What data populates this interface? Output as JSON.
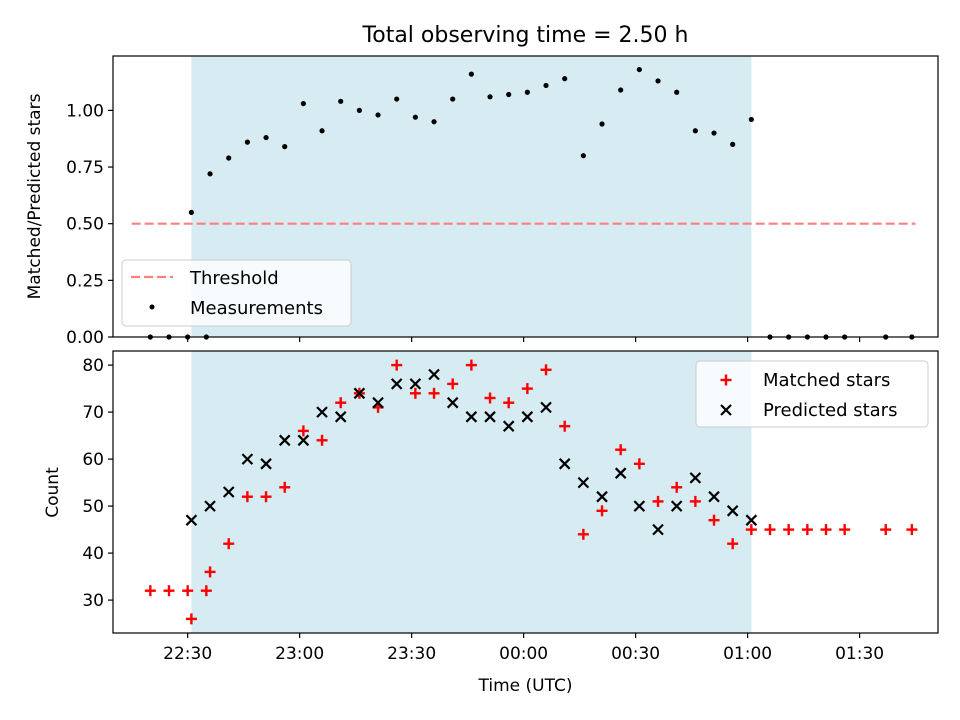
{
  "colors": {
    "shade": "#add8e6",
    "threshold": "#ff7f7f",
    "measurement": "#000000",
    "matched": "#ff0000",
    "predicted": "#000000"
  },
  "chart_data": [
    {
      "type": "scatter",
      "title": "Total observing time = 2.50 h",
      "xlabel": "",
      "ylabel": "Matched/Predicted stars",
      "xlim": [
        "22:10",
        "01:51"
      ],
      "ylim": [
        0,
        1.24
      ],
      "yticks": [
        "0.00",
        "0.25",
        "0.50",
        "0.75",
        "1.00"
      ],
      "shaded_region": {
        "x": [
          "22:31",
          "01:01"
        ]
      },
      "threshold": {
        "name": "Threshold",
        "x": [
          "22:15",
          "01:45"
        ],
        "y": 0.5
      },
      "legend": {
        "position": "lower-left",
        "entries": [
          "Threshold",
          "Measurements"
        ]
      },
      "series": [
        {
          "name": "Measurements",
          "marker": "dot",
          "x": [
            "22:20",
            "22:25",
            "22:30",
            "22:35",
            "22:31",
            "22:36",
            "22:41",
            "22:46",
            "22:51",
            "22:56",
            "23:01",
            "23:06",
            "23:11",
            "23:16",
            "23:21",
            "23:26",
            "23:31",
            "23:36",
            "23:41",
            "23:46",
            "23:51",
            "23:56",
            "00:01",
            "00:06",
            "00:11",
            "00:16",
            "00:21",
            "00:26",
            "00:31",
            "00:36",
            "00:41",
            "00:46",
            "00:51",
            "00:56",
            "01:01",
            "01:06",
            "01:11",
            "01:16",
            "01:21",
            "01:26",
            "01:37",
            "01:44"
          ],
          "y": [
            0,
            0,
            0,
            0,
            0.55,
            0.72,
            0.79,
            0.86,
            0.88,
            0.84,
            1.03,
            0.91,
            1.04,
            1.0,
            0.98,
            1.05,
            0.97,
            0.95,
            1.05,
            1.16,
            1.06,
            1.07,
            1.08,
            1.11,
            1.14,
            0.8,
            0.94,
            1.09,
            1.18,
            1.13,
            1.08,
            0.91,
            0.9,
            0.85,
            0.96,
            0,
            0,
            0,
            0,
            0,
            0,
            0
          ]
        }
      ]
    },
    {
      "type": "scatter",
      "title": "",
      "xlabel": "Time (UTC)",
      "ylabel": "Count",
      "xlim": [
        "22:10",
        "01:51"
      ],
      "ylim": [
        23,
        83
      ],
      "xticks": [
        "22:30",
        "23:00",
        "23:30",
        "00:00",
        "00:30",
        "01:00",
        "01:30"
      ],
      "yticks": [
        "30",
        "40",
        "50",
        "60",
        "70",
        "80"
      ],
      "shaded_region": {
        "x": [
          "22:31",
          "01:01"
        ]
      },
      "legend": {
        "position": "upper-right",
        "entries": [
          "Matched stars",
          "Predicted stars"
        ]
      },
      "series": [
        {
          "name": "Matched stars",
          "marker": "plus",
          "x": [
            "22:20",
            "22:25",
            "22:30",
            "22:35",
            "22:31",
            "22:36",
            "22:41",
            "22:46",
            "22:51",
            "22:56",
            "23:01",
            "23:06",
            "23:11",
            "23:16",
            "23:21",
            "23:26",
            "23:31",
            "23:36",
            "23:41",
            "23:46",
            "23:51",
            "23:56",
            "00:01",
            "00:06",
            "00:11",
            "00:16",
            "00:21",
            "00:26",
            "00:31",
            "00:36",
            "00:41",
            "00:46",
            "00:51",
            "00:56",
            "01:01",
            "01:06",
            "01:11",
            "01:16",
            "01:21",
            "01:26",
            "01:37",
            "01:44"
          ],
          "y": [
            32,
            32,
            32,
            32,
            26,
            36,
            42,
            52,
            52,
            54,
            66,
            64,
            72,
            74,
            71,
            80,
            74,
            74,
            76,
            80,
            73,
            72,
            75,
            79,
            67,
            44,
            49,
            62,
            59,
            51,
            54,
            51,
            47,
            42,
            45,
            45,
            45,
            45,
            45,
            45,
            45,
            45
          ]
        },
        {
          "name": "Predicted stars",
          "marker": "x",
          "x": [
            "22:31",
            "22:36",
            "22:41",
            "22:46",
            "22:51",
            "22:56",
            "23:01",
            "23:06",
            "23:11",
            "23:16",
            "23:21",
            "23:26",
            "23:31",
            "23:36",
            "23:41",
            "23:46",
            "23:51",
            "23:56",
            "00:01",
            "00:06",
            "00:11",
            "00:16",
            "00:21",
            "00:26",
            "00:31",
            "00:36",
            "00:41",
            "00:46",
            "00:51",
            "00:56",
            "01:01"
          ],
          "y": [
            47,
            50,
            53,
            60,
            59,
            64,
            64,
            70,
            69,
            74,
            72,
            76,
            76,
            78,
            72,
            69,
            69,
            67,
            69,
            71,
            59,
            55,
            52,
            57,
            50,
            45,
            50,
            56,
            52,
            49,
            47
          ]
        }
      ]
    }
  ]
}
